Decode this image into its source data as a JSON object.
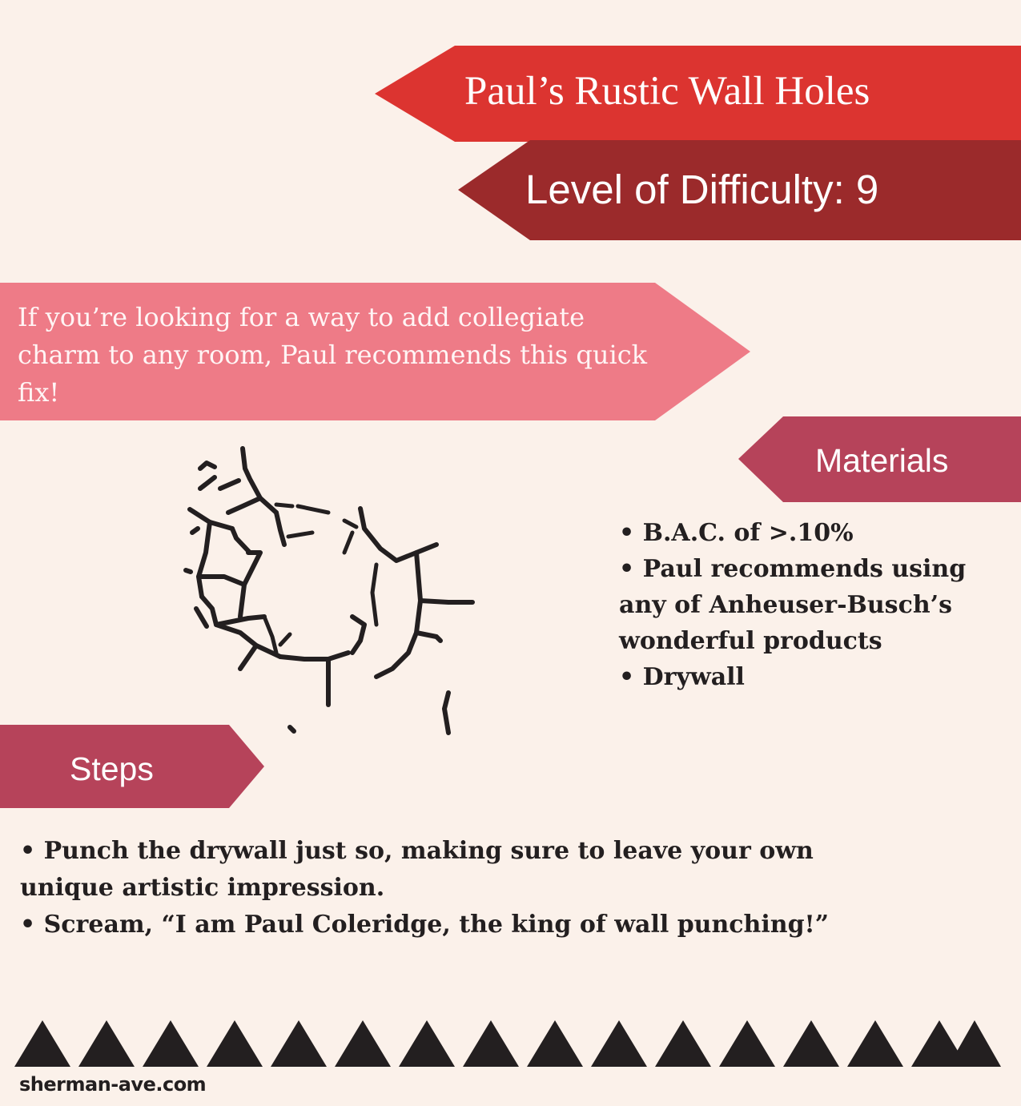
{
  "title": "Paul’s Rustic Wall Holes",
  "difficulty": "Level of Difficulty: 9",
  "intro": "If you’re looking for a way to add collegiate charm to any room, Paul recommends this quick fix!",
  "materials": {
    "heading": "Materials",
    "items": [
      "• B.A.C. of >.10%",
      "• Paul recommends using any of Anheuser-Busch’s wonderful products",
      "• Drywall"
    ]
  },
  "steps": {
    "heading": "Steps",
    "items": [
      "•  Punch the drywall just so, making sure to leave your own unique artistic impression.",
      "•  Scream, “I am Paul Coleridge, the king of wall punching!”"
    ]
  },
  "footer": "sherman-ave.com",
  "colors": {
    "background": "#fbf1ea",
    "title_red": "#dc3430",
    "dark_red": "#9b2a2b",
    "pink": "#ee7b87",
    "rose": "#b6435a",
    "ink": "#231f20"
  }
}
